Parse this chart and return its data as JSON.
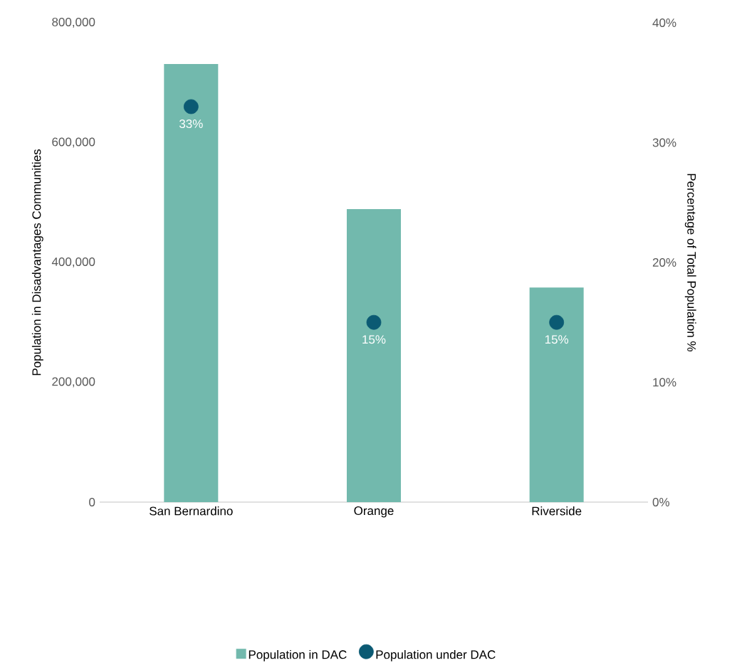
{
  "chart_data": {
    "type": "bar",
    "categories": [
      "San Bernardino",
      "Orange",
      "Riverside"
    ],
    "series": [
      {
        "name": "Population in DAC",
        "color": "#72b9ad",
        "values": [
          731000,
          489000,
          358000
        ]
      },
      {
        "name": "Population under DAC",
        "type": "scatter",
        "axis": "y2",
        "color": "#0b5a73",
        "values": [
          33,
          15,
          15
        ],
        "value_labels": [
          "33%",
          "15%",
          "15%"
        ]
      }
    ],
    "ylabel": "Population in Disadvantages Communities",
    "y2label": "Percentage of Total Population %",
    "ylim": [
      0,
      800000
    ],
    "yticks": [
      0,
      {
        "value": 200000,
        "label": "200,000"
      },
      {
        "value": 400000,
        "label": "400,000"
      },
      {
        "value": 600000,
        "label": "600,000"
      },
      {
        "value": 800000,
        "label": "800,000"
      }
    ],
    "y2lim": [
      0,
      40
    ],
    "y2ticks": [
      {
        "value": 0,
        "label": "0%"
      },
      {
        "value": 10,
        "label": "10%"
      },
      {
        "value": 20,
        "label": "20%"
      },
      {
        "value": 30,
        "label": "30%"
      },
      {
        "value": 40,
        "label": "40%"
      }
    ],
    "legend": "bottom",
    "marker": "circle"
  }
}
